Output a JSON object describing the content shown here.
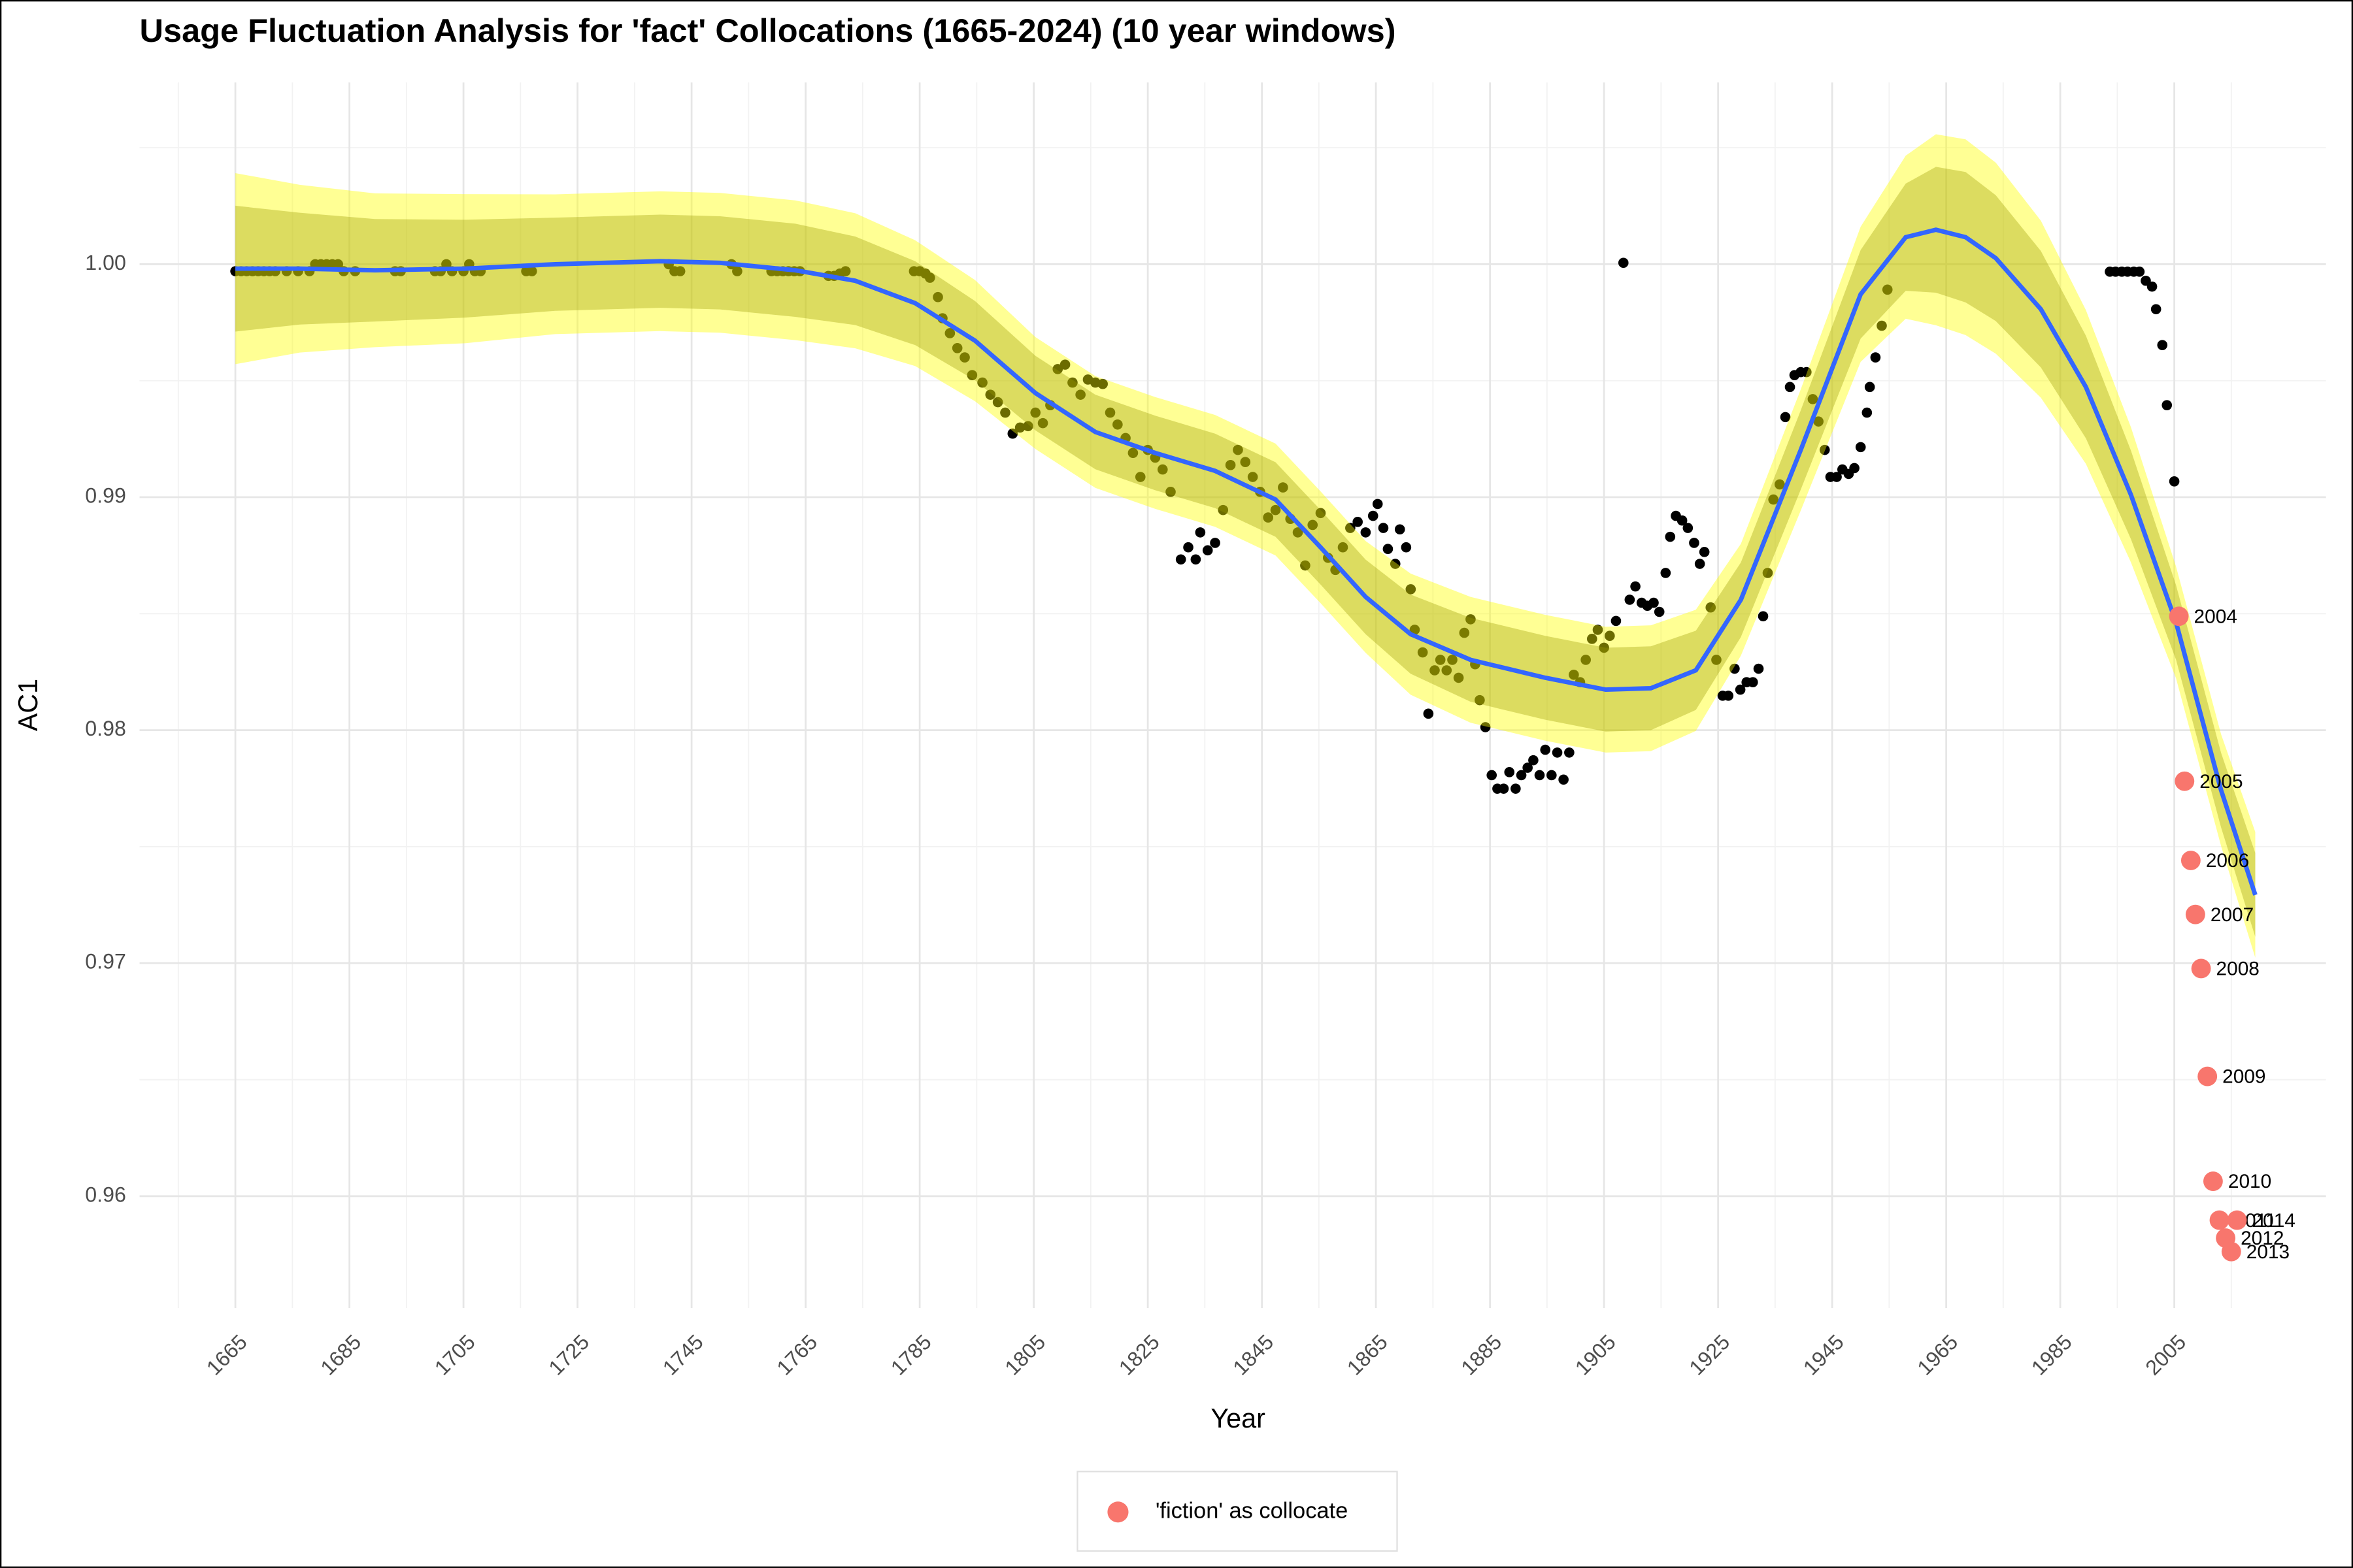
{
  "chart_data": {
    "type": "scatter",
    "title": "Usage Fluctuation Analysis for 'fact' Collocations (1665-2024) (10 year windows)",
    "x_label": "Year",
    "y_label": "AC1",
    "xlim": [
      1648.2,
      2031.6
    ],
    "ylim": [
      0.9552,
      1.0078
    ],
    "xticks": [
      1665,
      1685,
      1705,
      1725,
      1745,
      1765,
      1785,
      1805,
      1825,
      1845,
      1865,
      1885,
      1905,
      1925,
      1945,
      1965,
      1985,
      2005
    ],
    "yticks": [
      0.96,
      0.97,
      0.98,
      0.99,
      {
        "value": 1,
        "label": "1.00"
      }
    ],
    "grid": true,
    "minor_grid": true,
    "legend": "bottom",
    "series": [
      {
        "color": "#000000",
        "x": [
          1665,
          1666,
          1667,
          1668,
          1669,
          1670,
          1671,
          1672,
          1674,
          1676,
          1678,
          1679,
          1680,
          1681,
          1682,
          1683,
          1684,
          1686,
          1693,
          1694,
          1700,
          1701,
          1702,
          1703,
          1705,
          1706,
          1707,
          1708,
          1716,
          1717,
          1741,
          1742,
          1743,
          1752,
          1753,
          1759,
          1760,
          1761,
          1762,
          1763,
          1764,
          1769,
          1770,
          1771,
          1772,
          1784,
          1785,
          1786,
          1786.8,
          1788.2,
          1789,
          1790.3,
          1791.6,
          1792.9,
          1794.2,
          1796,
          1797.4,
          1798.7,
          1800,
          1801.3,
          1802.6,
          1804,
          1805.3,
          1806.6,
          1807.9,
          1809.2,
          1810.5,
          1811.8,
          1813.2,
          1814.5,
          1815.8,
          1817.1,
          1818.4,
          1819.7,
          1821.1,
          1822.4,
          1823.7,
          1825,
          1826.3,
          1827.6,
          1829,
          1830.8,
          1832.1,
          1833.4,
          1834.2,
          1835.5,
          1836.8,
          1838.2,
          1839.5,
          1840.8,
          1842.1,
          1843.4,
          1844.7,
          1846.1,
          1847.4,
          1848.7,
          1850,
          1851.3,
          1852.6,
          1853.9,
          1855.3,
          1856.6,
          1857.9,
          1859.2,
          1860.5,
          1861.8,
          1863.2,
          1864.5,
          1865.3,
          1866.3,
          1867.1,
          1868.4,
          1869.2,
          1870.3,
          1871.1,
          1871.8,
          1873.2,
          1874.2,
          1875.3,
          1876.3,
          1877.4,
          1878.4,
          1879.5,
          1880.5,
          1881.6,
          1882.4,
          1883.2,
          1884.2,
          1885.3,
          1886.3,
          1887.4,
          1888.4,
          1889.5,
          1890.5,
          1891.6,
          1892.6,
          1893.7,
          1894.7,
          1895.8,
          1896.8,
          1897.9,
          1898.9,
          1899.7,
          1900.8,
          1901.8,
          1902.9,
          1903.9,
          1905,
          1906,
          1907.1,
          1908.4,
          1909.5,
          1910.5,
          1911.6,
          1912.6,
          1913.7,
          1914.7,
          1915.8,
          1916.6,
          1917.6,
          1918.7,
          1919.7,
          1920.8,
          1921.8,
          1922.6,
          1923.7,
          1924.7,
          1925.8,
          1926.8,
          1927.9,
          1928.9,
          1930,
          1931.1,
          1932.1,
          1932.9,
          1933.7,
          1934.7,
          1935.8,
          1936.8,
          1937.6,
          1938.4,
          1939.5,
          1940.5,
          1941.6,
          1942.6,
          1943.7,
          1944.7,
          1945.8,
          1946.8,
          1947.9,
          1948.9,
          1950,
          1951.1,
          1951.6,
          1952.6,
          1953.7,
          1954.7,
          1993.7,
          1994.7,
          1995.8,
          1996.8,
          1997.9,
          1998.9,
          2000,
          2001.1,
          2001.8,
          2002.9,
          2003.7,
          2005
        ],
        "values": [
          0.9997,
          0.9997,
          0.9997,
          0.9997,
          0.9997,
          0.9997,
          0.9997,
          0.9997,
          0.9997,
          0.9997,
          0.9997,
          1.0,
          1.0,
          1.0,
          1.0,
          1.0,
          0.9997,
          0.9997,
          0.9997,
          0.9997,
          0.9997,
          0.9997,
          1.0,
          0.9997,
          0.9997,
          1.0,
          0.9997,
          0.9997,
          0.9997,
          0.9997,
          1.0,
          0.9997,
          0.9997,
          1.0,
          0.9997,
          0.9997,
          0.9997,
          0.9997,
          0.9997,
          0.9997,
          0.9997,
          0.9995,
          0.9995,
          0.9996,
          0.9997,
          0.9997,
          0.9997,
          0.9996,
          0.99942,
          0.99859,
          0.99768,
          0.99704,
          0.9964,
          0.996,
          0.99524,
          0.99492,
          0.9944,
          0.99408,
          0.99363,
          0.99273,
          0.99299,
          0.99305,
          0.99363,
          0.99318,
          0.99395,
          0.9955,
          0.99569,
          0.99492,
          0.9944,
          0.99505,
          0.99492,
          0.99486,
          0.99363,
          0.99312,
          0.99254,
          0.9919,
          0.99087,
          0.99203,
          0.9917,
          0.99119,
          0.99023,
          0.98733,
          0.98785,
          0.98733,
          0.98849,
          0.98772,
          0.98804,
          0.98945,
          0.99138,
          0.99203,
          0.99151,
          0.99087,
          0.99023,
          0.98913,
          0.98945,
          0.99042,
          0.98907,
          0.98849,
          0.98707,
          0.98881,
          0.98932,
          0.9874,
          0.98688,
          0.98785,
          0.98868,
          0.98894,
          0.98849,
          0.9892,
          0.98971,
          0.98868,
          0.98778,
          0.98714,
          0.98862,
          0.98785,
          0.98605,
          0.98431,
          0.98334,
          0.98071,
          0.98257,
          0.98302,
          0.98257,
          0.98302,
          0.98225,
          0.98418,
          0.98476,
          0.98283,
          0.98129,
          0.98013,
          0.97807,
          0.97749,
          0.97749,
          0.9782,
          0.97749,
          0.97807,
          0.97839,
          0.97871,
          0.97807,
          0.97916,
          0.97807,
          0.97904,
          0.97788,
          0.97904,
          0.98238,
          0.98206,
          0.98302,
          0.98392,
          0.98431,
          0.98354,
          0.98405,
          0.98469,
          1.00006,
          0.9856,
          0.98617,
          0.98547,
          0.98534,
          0.98547,
          0.98508,
          0.98675,
          0.9883,
          0.9892,
          0.989,
          0.98868,
          0.98804,
          0.98714,
          0.98765,
          0.98527,
          0.98302,
          0.98148,
          0.98148,
          0.98264,
          0.98174,
          0.98206,
          0.98206,
          0.98264,
          0.98489,
          0.98675,
          0.9899,
          0.99055,
          0.99344,
          0.99473,
          0.99524,
          0.99537,
          0.99537,
          0.99421,
          0.99325,
          0.99203,
          0.99087,
          0.99087,
          0.99119,
          0.991,
          0.99125,
          0.99215,
          0.99363,
          0.99473,
          0.996,
          0.99736,
          0.99891,
          0.99968,
          0.99968,
          0.99968,
          0.99968,
          0.99968,
          0.99968,
          0.99929,
          0.99904,
          0.99807,
          0.99653,
          0.99395,
          0.99068
        ]
      },
      {
        "name": "'fiction' as collocate",
        "color": "#f8766d",
        "x": [
          2005.8,
          2006.8,
          2007.9,
          2008.7,
          2009.7,
          2010.8,
          2011.8,
          2012.9,
          2014,
          2015,
          2016
        ],
        "values": [
          0.98489,
          0.97781,
          0.97441,
          0.97209,
          0.96977,
          0.96514,
          0.96064,
          0.95897,
          0.9582,
          0.95762,
          0.95897
        ],
        "labels": [
          "2004",
          "2005",
          "2006",
          "2007",
          "2008",
          "2009",
          "2010",
          "2011",
          "2012",
          "2013",
          "2014"
        ]
      }
    ],
    "smooth": {
      "color": "#3366ff",
      "band_inner_color": "#9a9a00",
      "band_outer_color": "#ffff00",
      "x": [
        1665,
        1676.3,
        1689.5,
        1705.3,
        1721.1,
        1739.5,
        1750,
        1763.2,
        1773.7,
        1784.2,
        1794.7,
        1805.3,
        1815.8,
        1826.3,
        1836.8,
        1847.4,
        1855.3,
        1863.2,
        1871.1,
        1881.6,
        1894.7,
        1905.3,
        1913.2,
        1921.1,
        1929,
        1939.5,
        1950,
        1957.9,
        1963.2,
        1968.4,
        1973.7,
        1981.6,
        1989.5,
        1997.4,
        2005.3,
        2013.2,
        2019.2
      ],
      "values": [
        0.99981,
        0.99981,
        0.99974,
        0.99981,
        1.0,
        1.00013,
        1.00006,
        0.99974,
        0.99929,
        0.99833,
        0.99672,
        0.99447,
        0.9928,
        0.9919,
        0.99113,
        0.9899,
        0.98785,
        0.98572,
        0.98412,
        0.98302,
        0.98225,
        0.98174,
        0.9818,
        0.98257,
        0.9856,
        0.99203,
        0.99871,
        1.00116,
        1.00148,
        1.00116,
        1.00026,
        0.99807,
        0.99473,
        0.9901,
        0.98463,
        0.97743,
        0.97293
      ],
      "band_inner": [
        0.0027,
        0.0024,
        0.0022,
        0.0021,
        0.002,
        0.002,
        0.002,
        0.002,
        0.0019,
        0.0018,
        0.0017,
        0.0016,
        0.0016,
        0.0016,
        0.0016,
        0.0016,
        0.0016,
        0.0016,
        0.0017,
        0.0018,
        0.0018,
        0.0018,
        0.0018,
        0.0017,
        0.0016,
        0.0017,
        0.0019,
        0.0023,
        0.0027,
        0.0028,
        0.0027,
        0.0025,
        0.0022,
        0.0019,
        0.0016,
        0.0016,
        0.0018
      ],
      "band_outer": [
        0.0041,
        0.0036,
        0.0033,
        0.0032,
        0.003,
        0.003,
        0.003,
        0.003,
        0.0029,
        0.0027,
        0.0026,
        0.0024,
        0.0024,
        0.0024,
        0.0024,
        0.0024,
        0.0024,
        0.0024,
        0.0026,
        0.0027,
        0.0027,
        0.0027,
        0.0027,
        0.0026,
        0.0024,
        0.0026,
        0.0029,
        0.0035,
        0.0041,
        0.0042,
        0.0041,
        0.0038,
        0.0033,
        0.0029,
        0.0024,
        0.0024,
        0.0027
      ]
    }
  }
}
